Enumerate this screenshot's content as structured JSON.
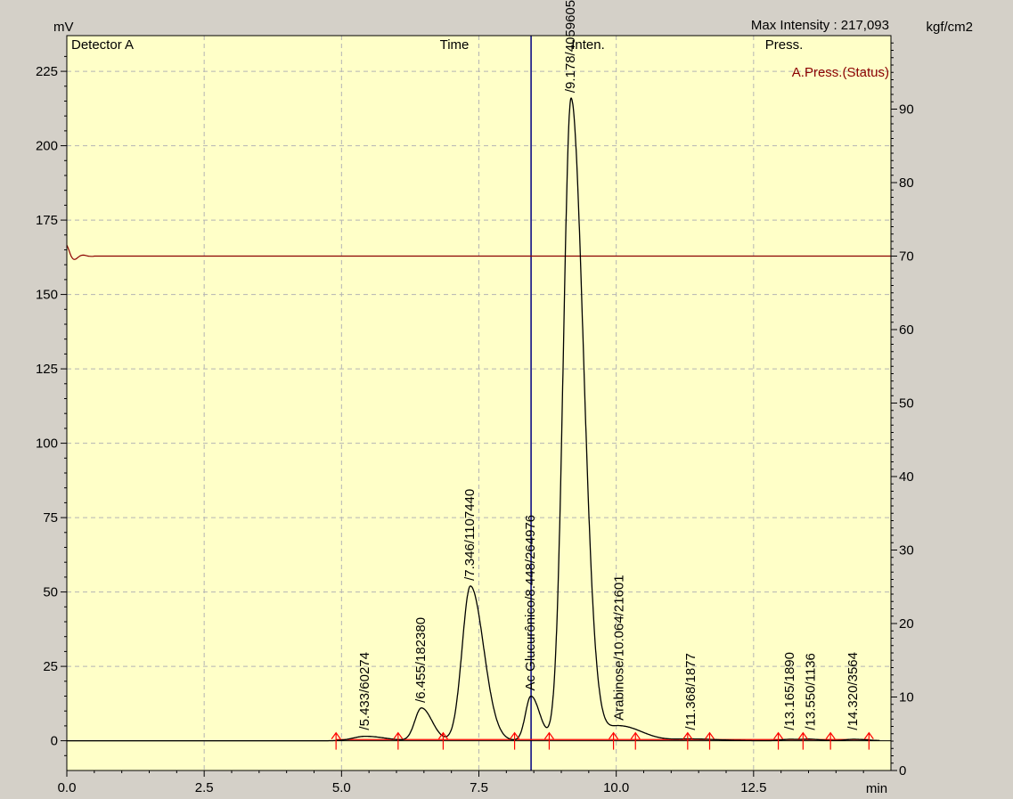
{
  "header": {
    "left_unit": "mV",
    "max_intensity": "Max Intensity : 217,093",
    "right_unit": "kgf/cm2",
    "detector": "Detector A",
    "col_time": "Time",
    "col_inten": "Inten.",
    "col_press": "Press.",
    "press_status": "A.Press.(Status)",
    "x_unit": "min"
  },
  "colors": {
    "background": "#ffffc8",
    "frame": "#d4d0c8",
    "signal": "#000000",
    "pressure": "#8b0000",
    "baseline": "#ff0000",
    "marker": "#ff0000",
    "cursor": "#000080",
    "grid": "#b4b4b4"
  },
  "chart_data": {
    "type": "line",
    "xlim": [
      0,
      15
    ],
    "ylim": [
      -10,
      237
    ],
    "y2lim": [
      0,
      100
    ],
    "x_ticks": [
      "0.0",
      "2.5",
      "5.0",
      "7.5",
      "10.0",
      "12.5"
    ],
    "y_ticks": [
      "0",
      "25",
      "50",
      "75",
      "100",
      "125",
      "150",
      "175",
      "200",
      "225"
    ],
    "y2_ticks": [
      "0",
      "10",
      "20",
      "30",
      "40",
      "50",
      "60",
      "70",
      "80",
      "90"
    ],
    "grid": true,
    "cursor_time": 8.45,
    "pressure_level": 70,
    "peaks": [
      {
        "rt": 5.433,
        "height": 1.5,
        "width": 0.22,
        "label": "/5.433/60274"
      },
      {
        "rt": 6.455,
        "height": 11,
        "width": 0.12,
        "label": "/6.455/182380"
      },
      {
        "rt": 7.346,
        "height": 52,
        "width": 0.15,
        "label": "/7.346/1107440"
      },
      {
        "rt": 8.448,
        "height": 15,
        "width": 0.1,
        "label": "Ac Glucurônico/8.448/264976"
      },
      {
        "rt": 9.178,
        "height": 216,
        "width": 0.14,
        "label": "/9.178/4059605"
      },
      {
        "rt": 10.064,
        "height": 5,
        "width": 0.25,
        "label": "Arabinose/10.064/21601"
      },
      {
        "rt": 11.368,
        "height": 0.6,
        "width": 0.3,
        "label": "/11.368/1877"
      },
      {
        "rt": 13.165,
        "height": 0.5,
        "width": 0.15,
        "label": "/13.165/1890"
      },
      {
        "rt": 13.55,
        "height": 0.4,
        "width": 0.12,
        "label": "/13.550/1136"
      },
      {
        "rt": 14.32,
        "height": 0.5,
        "width": 0.15,
        "label": "/14.320/3564"
      }
    ],
    "markers": [
      4.9,
      6.03,
      6.85,
      8.15,
      8.78,
      9.95,
      10.35,
      11.3,
      11.7,
      12.95,
      13.4,
      13.9,
      14.6
    ]
  }
}
